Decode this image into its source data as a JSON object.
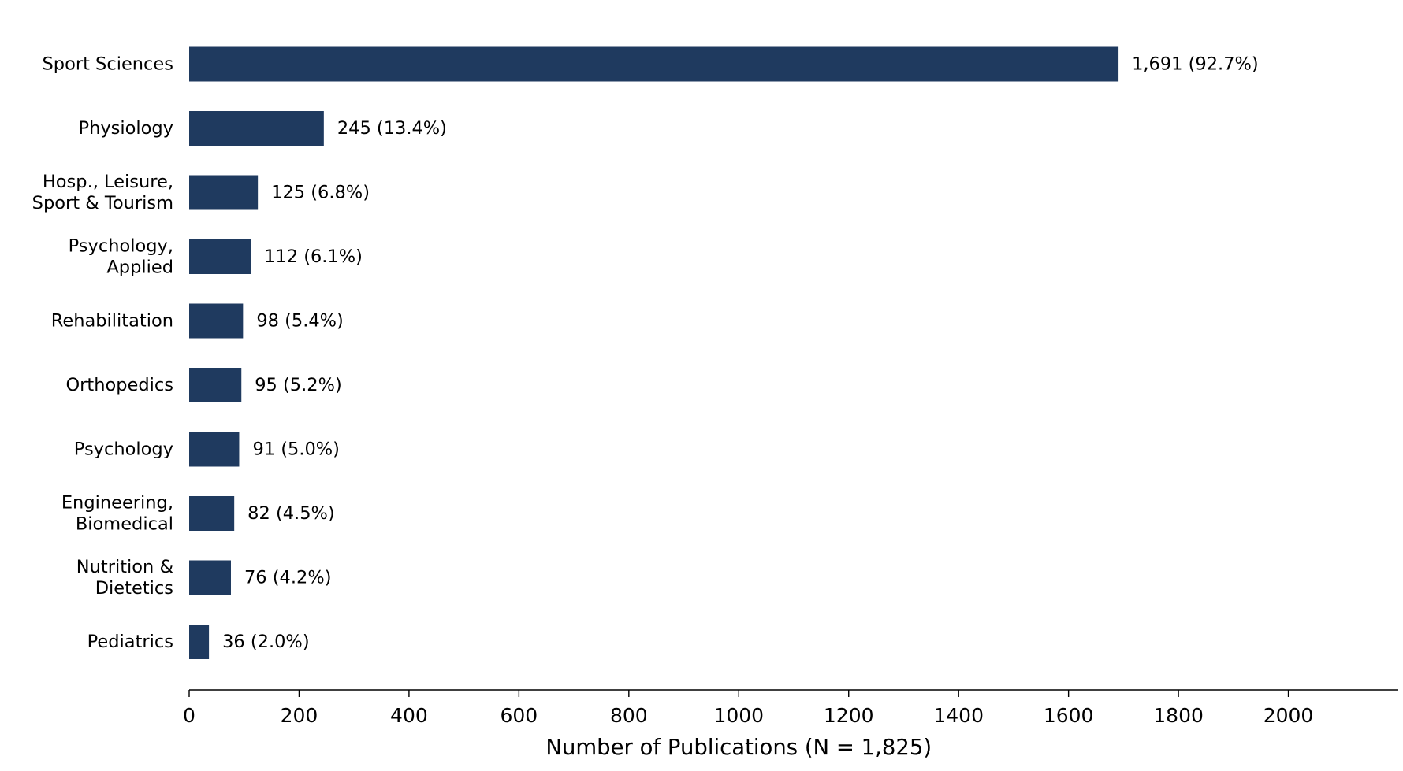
{
  "chart_data": {
    "type": "bar",
    "orientation": "horizontal",
    "categories": [
      "Sport Sciences",
      "Physiology",
      "Hosp., Leisure,\nSport & Tourism",
      "Psychology,\nApplied",
      "Rehabilitation",
      "Orthopedics",
      "Psychology",
      "Engineering,\nBiomedical",
      "Nutrition &\nDietetics",
      "Pediatrics"
    ],
    "values": [
      1691,
      245,
      125,
      112,
      98,
      95,
      91,
      82,
      76,
      36
    ],
    "data_labels": [
      "1,691 (92.7%)",
      "245 (13.4%)",
      "125 (6.8%)",
      "112 (6.1%)",
      "98 (5.4%)",
      "95 (5.2%)",
      "91 (5.0%)",
      "82 (4.5%)",
      "76 (4.2%)",
      "36 (2.0%)"
    ],
    "title": "",
    "xlabel": "Number of Publications (N = 1,825)",
    "ylabel": "",
    "xlim": [
      0,
      2200
    ],
    "xticks": [
      0,
      200,
      400,
      600,
      800,
      1000,
      1200,
      1400,
      1600,
      1800,
      2000
    ],
    "bar_color": "#1f3a5f",
    "grid": false,
    "legend": "none"
  }
}
